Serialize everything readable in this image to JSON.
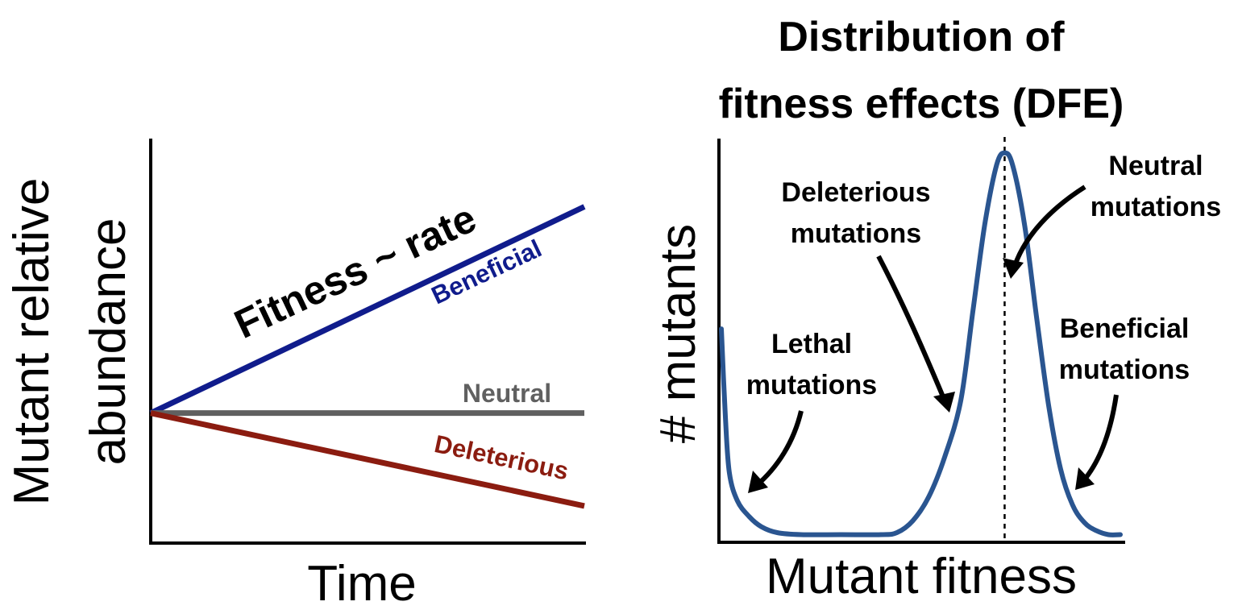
{
  "colors": {
    "beneficial": "#101c8c",
    "neutral": "#606060",
    "deleterious": "#8b1c10",
    "dfe_curve": "#2a5590",
    "axis": "#000000",
    "text": "#000000"
  },
  "chart_data": [
    {
      "type": "line",
      "title": "",
      "xlabel": "Time",
      "ylabel_lines": [
        "Mutant relative",
        "abundance"
      ],
      "annotation": "Fitness ~ rate",
      "x": [
        0,
        1
      ],
      "series": [
        {
          "name": "Beneficial",
          "values": [
            0,
            1.0
          ]
        },
        {
          "name": "Neutral",
          "values": [
            0,
            0
          ]
        },
        {
          "name": "Deleterious",
          "values": [
            0,
            -0.45
          ]
        }
      ],
      "ylim": [
        -0.63,
        1.33
      ],
      "xlim": [
        0,
        1
      ],
      "grid": false
    },
    {
      "type": "line",
      "title_lines": [
        "Distribution of",
        "fitness effects (DFE)"
      ],
      "xlabel": "Mutant fitness",
      "ylabel": "# mutants",
      "neutral_line_x": 0.71,
      "xlim": [
        0,
        1
      ],
      "ylim": [
        0,
        1
      ],
      "curve": {
        "x": [
          0,
          0.01,
          0.02,
          0.04,
          0.07,
          0.1,
          0.14,
          0.2,
          0.3,
          0.4,
          0.44,
          0.48,
          0.52,
          0.56,
          0.6,
          0.63,
          0.66,
          0.69,
          0.71,
          0.73,
          0.76,
          0.79,
          0.82,
          0.85,
          0.88,
          0.91,
          0.94,
          0.97,
          1.0
        ],
        "y": [
          0.52,
          0.3,
          0.16,
          0.09,
          0.05,
          0.025,
          0.01,
          0.005,
          0.005,
          0.005,
          0.01,
          0.04,
          0.1,
          0.2,
          0.34,
          0.56,
          0.78,
          0.93,
          0.96,
          0.93,
          0.78,
          0.55,
          0.33,
          0.17,
          0.08,
          0.035,
          0.015,
          0.005,
          0.005
        ]
      },
      "annotations": [
        {
          "lines": [
            "Lethal",
            "mutations"
          ]
        },
        {
          "lines": [
            "Deleterious",
            "mutations"
          ]
        },
        {
          "lines": [
            "Neutral",
            "mutations"
          ]
        },
        {
          "lines": [
            "Beneficial",
            "mutations"
          ]
        }
      ]
    }
  ]
}
